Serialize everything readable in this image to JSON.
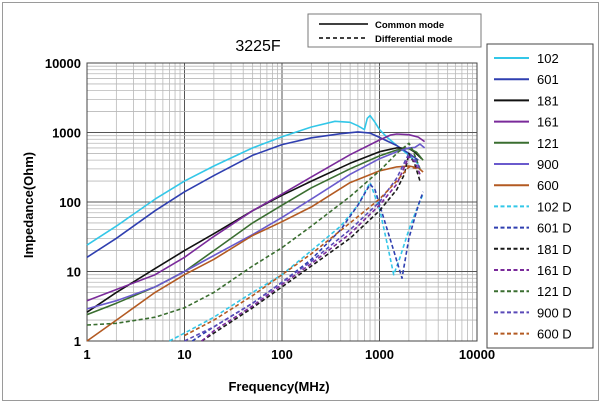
{
  "chart_data": {
    "type": "line",
    "title": "3225F",
    "xlabel": "Frequency(MHz)",
    "ylabel": "Impedance(Ohm)",
    "x_scale": "log",
    "y_scale": "log",
    "xlim": [
      1,
      10000
    ],
    "ylim": [
      1,
      10000
    ],
    "x_ticks": [
      "1",
      "10",
      "100",
      "1000",
      "10000"
    ],
    "y_ticks": [
      "10000",
      "1000",
      "100",
      "10",
      "1"
    ],
    "grid": true,
    "legend_position": "right",
    "line_style_legend": [
      {
        "label": "Common mode",
        "style": "solid"
      },
      {
        "label": "Differential mode",
        "style": "dashed"
      }
    ],
    "series": [
      {
        "name": "102",
        "color": "#33c7e8",
        "style": "solid",
        "x": [
          1,
          2,
          5,
          10,
          20,
          50,
          100,
          200,
          350,
          500,
          600,
          700,
          750,
          800,
          900,
          1000,
          1200,
          1500,
          2000,
          2500
        ],
        "y": [
          24,
          45,
          110,
          200,
          330,
          600,
          870,
          1200,
          1450,
          1400,
          1250,
          1100,
          1600,
          1750,
          1400,
          1100,
          850,
          650,
          470,
          350
        ]
      },
      {
        "name": "601",
        "color": "#2f3fb0",
        "style": "solid",
        "x": [
          1,
          2,
          5,
          10,
          20,
          50,
          100,
          200,
          400,
          600,
          800,
          1000,
          1500,
          2000,
          2500
        ],
        "y": [
          16,
          30,
          75,
          140,
          240,
          470,
          670,
          840,
          960,
          1020,
          980,
          850,
          650,
          500,
          400
        ]
      },
      {
        "name": "181",
        "color": "#111111",
        "style": "solid",
        "x": [
          1,
          2,
          5,
          10,
          20,
          50,
          100,
          200,
          500,
          1000,
          1500,
          2000,
          2300,
          2700
        ],
        "y": [
          2.6,
          5,
          11,
          20,
          35,
          75,
          125,
          200,
          360,
          530,
          600,
          590,
          520,
          420
        ]
      },
      {
        "name": "161",
        "color": "#7a2a9a",
        "style": "solid",
        "x": [
          1,
          2,
          5,
          10,
          20,
          50,
          100,
          200,
          500,
          1000,
          1300,
          1500,
          2000,
          2500,
          2900
        ],
        "y": [
          3.8,
          5.5,
          9,
          16,
          32,
          75,
          130,
          230,
          480,
          780,
          920,
          950,
          930,
          860,
          740
        ]
      },
      {
        "name": "121",
        "color": "#3a6e30",
        "style": "solid",
        "x": [
          1,
          2,
          5,
          10,
          20,
          50,
          100,
          200,
          500,
          1000,
          1500,
          2000,
          2400,
          2800
        ],
        "y": [
          2.4,
          3.5,
          6,
          10,
          20,
          50,
          90,
          160,
          300,
          460,
          560,
          590,
          520,
          400
        ]
      },
      {
        "name": "900",
        "color": "#6a5acd",
        "style": "solid",
        "x": [
          1,
          2,
          5,
          10,
          20,
          50,
          100,
          200,
          500,
          1000,
          1500,
          2000,
          2300,
          2600,
          2900
        ],
        "y": [
          2.9,
          3.8,
          6,
          10,
          17,
          34,
          60,
          110,
          250,
          420,
          530,
          600,
          610,
          680,
          600
        ]
      },
      {
        "name": "600",
        "color": "#b35a22",
        "style": "solid",
        "x": [
          1,
          2,
          5,
          10,
          20,
          50,
          100,
          200,
          500,
          1000,
          1500,
          2000,
          2500,
          2800
        ],
        "y": [
          1,
          2,
          5,
          9,
          15,
          33,
          52,
          85,
          190,
          280,
          320,
          330,
          310,
          270
        ]
      },
      {
        "name": "102 D",
        "color": "#33c7e8",
        "style": "dashed",
        "x": [
          7,
          10,
          20,
          50,
          100,
          200,
          400,
          600,
          800,
          1000,
          1200,
          1400,
          1600,
          2000,
          2500,
          2800
        ],
        "y": [
          1,
          1.3,
          2.2,
          5,
          9,
          20,
          45,
          90,
          190,
          80,
          25,
          9,
          15,
          40,
          90,
          130
        ]
      },
      {
        "name": "601 D",
        "color": "#2f3fb0",
        "style": "dashed",
        "x": [
          12,
          20,
          50,
          100,
          200,
          400,
          600,
          800,
          900,
          1100,
          1400,
          1700,
          2000,
          2500,
          2800
        ],
        "y": [
          1,
          1.6,
          3.5,
          7,
          15,
          40,
          90,
          180,
          150,
          60,
          20,
          8,
          30,
          90,
          140
        ]
      },
      {
        "name": "181 D",
        "color": "#1a1a1a",
        "style": "dashed",
        "x": [
          15,
          20,
          50,
          100,
          200,
          500,
          1000,
          1500,
          1800,
          2000,
          2300,
          2600
        ],
        "y": [
          1,
          1.3,
          3,
          6,
          12,
          30,
          75,
          150,
          250,
          500,
          350,
          200
        ]
      },
      {
        "name": "161 D",
        "color": "#7a2a9a",
        "style": "dashed",
        "x": [
          15,
          20,
          50,
          100,
          200,
          500,
          1000,
          1500,
          2000,
          2300,
          2600
        ],
        "y": [
          1,
          1.4,
          3.2,
          6.5,
          13,
          35,
          90,
          180,
          450,
          380,
          250
        ]
      },
      {
        "name": "121 D",
        "color": "#3a6e30",
        "style": "dashed",
        "x": [
          1,
          2,
          5,
          10,
          20,
          50,
          100,
          200,
          500,
          1000,
          1500,
          2000,
          2200,
          2600
        ],
        "y": [
          1.7,
          1.8,
          2.2,
          3,
          5,
          12,
          22,
          45,
          120,
          280,
          500,
          700,
          550,
          300
        ]
      },
      {
        "name": "900 D",
        "color": "#5a4ab8",
        "style": "dashed",
        "x": [
          10,
          20,
          50,
          100,
          200,
          500,
          1000,
          1500,
          2000,
          2300,
          2600
        ],
        "y": [
          1,
          1.6,
          3.5,
          7,
          14,
          40,
          100,
          220,
          500,
          420,
          300
        ]
      },
      {
        "name": "600 D",
        "color": "#b35a22",
        "style": "dashed",
        "x": [
          10,
          20,
          50,
          100,
          200,
          500,
          1000,
          1500,
          2000,
          2500
        ],
        "y": [
          1.2,
          2,
          4.5,
          9,
          18,
          50,
          110,
          200,
          320,
          300
        ]
      }
    ]
  }
}
